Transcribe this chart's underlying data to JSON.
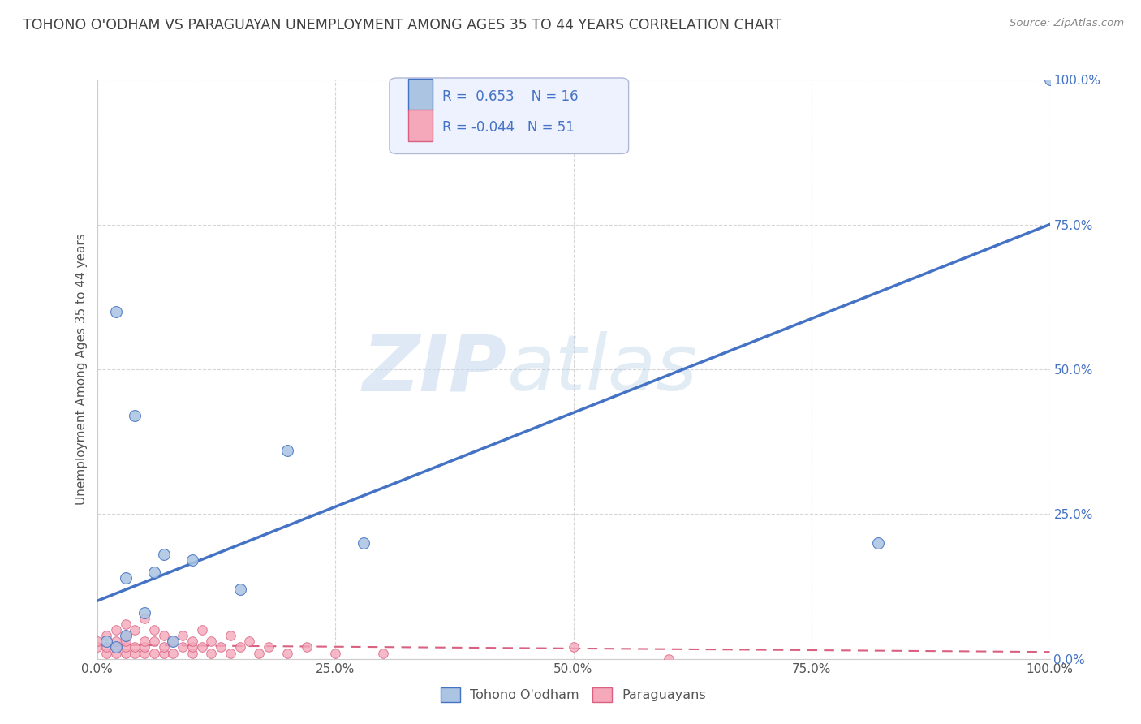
{
  "title": "TOHONO O'ODHAM VS PARAGUAYAN UNEMPLOYMENT AMONG AGES 35 TO 44 YEARS CORRELATION CHART",
  "source": "Source: ZipAtlas.com",
  "ylabel": "Unemployment Among Ages 35 to 44 years",
  "xlim": [
    0,
    1.0
  ],
  "ylim": [
    0,
    1.0
  ],
  "xticks": [
    0.0,
    0.25,
    0.5,
    0.75,
    1.0
  ],
  "yticks": [
    0.0,
    0.25,
    0.5,
    0.75,
    1.0
  ],
  "xticklabels": [
    "0.0%",
    "25.0%",
    "50.0%",
    "75.0%",
    "100.0%"
  ],
  "yticklabels": [
    "0.0%",
    "25.0%",
    "50.0%",
    "75.0%",
    "100.0%"
  ],
  "watermark_zip": "ZIP",
  "watermark_atlas": "atlas",
  "blue_R": 0.653,
  "blue_N": 16,
  "pink_R": -0.044,
  "pink_N": 51,
  "blue_color": "#aac4e2",
  "blue_line_color": "#4472c4",
  "pink_color": "#f4a8ba",
  "pink_line_color": "#d96080",
  "background_color": "#ffffff",
  "grid_color": "#cccccc",
  "title_color": "#404040",
  "axis_label_color": "#4472c4",
  "ytick_color": "#4472c4",
  "xtick_color": "#555555",
  "tohono_scatter_x": [
    0.02,
    0.03,
    0.04,
    0.01,
    0.05,
    0.06,
    0.03,
    0.07,
    0.08,
    0.1,
    0.02,
    0.15,
    0.2,
    0.28,
    0.82,
    1.0
  ],
  "tohono_scatter_y": [
    0.6,
    0.14,
    0.42,
    0.03,
    0.08,
    0.15,
    0.04,
    0.18,
    0.03,
    0.17,
    0.02,
    0.12,
    0.36,
    0.2,
    0.2,
    1.0
  ],
  "paraguayan_scatter_x": [
    0.0,
    0.0,
    0.01,
    0.01,
    0.01,
    0.02,
    0.02,
    0.02,
    0.02,
    0.03,
    0.03,
    0.03,
    0.03,
    0.03,
    0.04,
    0.04,
    0.04,
    0.05,
    0.05,
    0.05,
    0.05,
    0.06,
    0.06,
    0.06,
    0.07,
    0.07,
    0.07,
    0.08,
    0.08,
    0.09,
    0.09,
    0.1,
    0.1,
    0.1,
    0.11,
    0.11,
    0.12,
    0.12,
    0.13,
    0.14,
    0.14,
    0.15,
    0.16,
    0.17,
    0.18,
    0.2,
    0.22,
    0.25,
    0.3,
    0.5,
    0.6
  ],
  "paraguayan_scatter_y": [
    0.02,
    0.03,
    0.01,
    0.02,
    0.04,
    0.01,
    0.02,
    0.03,
    0.05,
    0.01,
    0.02,
    0.03,
    0.04,
    0.06,
    0.01,
    0.02,
    0.05,
    0.01,
    0.02,
    0.03,
    0.07,
    0.01,
    0.03,
    0.05,
    0.01,
    0.02,
    0.04,
    0.01,
    0.03,
    0.02,
    0.04,
    0.01,
    0.02,
    0.03,
    0.02,
    0.05,
    0.01,
    0.03,
    0.02,
    0.01,
    0.04,
    0.02,
    0.03,
    0.01,
    0.02,
    0.01,
    0.02,
    0.01,
    0.01,
    0.02,
    0.0
  ],
  "blue_trendline_x": [
    0.0,
    1.0
  ],
  "blue_trendline_y": [
    0.1,
    0.75
  ],
  "pink_trendline_x": [
    0.0,
    1.0
  ],
  "pink_trendline_y": [
    0.024,
    0.012
  ],
  "legend_box_facecolor": "#eef2ff",
  "legend_box_edgecolor": "#b0b8d8",
  "scatter_size_blue": 100,
  "scatter_size_pink": 70
}
